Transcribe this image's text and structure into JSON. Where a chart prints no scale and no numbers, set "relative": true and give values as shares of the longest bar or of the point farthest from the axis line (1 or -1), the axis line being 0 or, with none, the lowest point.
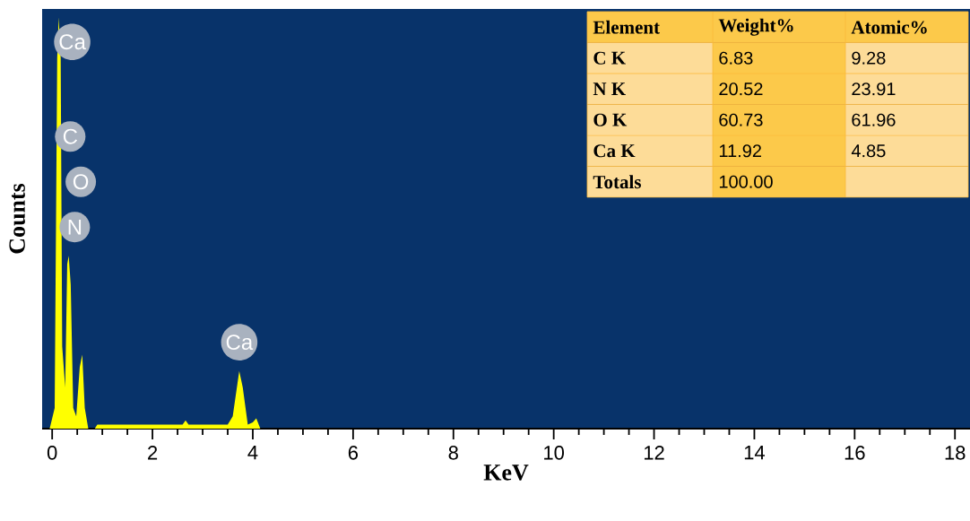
{
  "chart_data": {
    "type": "area",
    "relative": true,
    "xlabel": "KeV",
    "ylabel": "Counts",
    "xlim": [
      -0.2,
      18.3
    ],
    "xticks": [
      0,
      2,
      4,
      6,
      8,
      10,
      12,
      14,
      16,
      18
    ],
    "series": [
      {
        "color": "#ffff00",
        "x": [
          -0.05,
          0.05,
          0.1,
          0.13,
          0.17,
          0.2,
          0.26,
          0.3,
          0.33,
          0.37,
          0.42,
          0.48,
          0.55,
          0.6,
          0.65,
          0.72,
          0.85,
          0.9,
          2.6,
          2.66,
          2.72,
          3.5,
          3.6,
          3.73,
          3.8,
          3.9,
          4.0,
          4.07,
          4.15,
          18.3
        ],
        "values": [
          0,
          0.05,
          0.9,
          1.0,
          0.9,
          0.2,
          0.1,
          0.4,
          0.42,
          0.35,
          0.05,
          0.03,
          0.15,
          0.18,
          0.05,
          0,
          0,
          0.01,
          0.01,
          0.02,
          0.01,
          0.01,
          0.03,
          0.14,
          0.1,
          0.01,
          0.015,
          0.025,
          0,
          0
        ]
      }
    ],
    "annotations": [
      "Element",
      "Weight%",
      "Atomic%",
      "C K",
      "6.83",
      "9.28",
      "N K",
      "20.52",
      "23.91",
      "O K",
      "60.73",
      "61.96",
      "Ca K",
      "11.92",
      "4.85",
      "Totals",
      "100.00",
      {
        "text": "Ca",
        "x": 0.4,
        "y": 0.94
      },
      {
        "text": "C",
        "x": 0.36,
        "y": 0.71
      },
      {
        "text": "O",
        "x": 0.57,
        "y": 0.6
      },
      {
        "text": "N",
        "x": 0.45,
        "y": 0.49
      },
      {
        "text": "Ca",
        "x": 3.73,
        "y": 0.21
      }
    ]
  }
}
